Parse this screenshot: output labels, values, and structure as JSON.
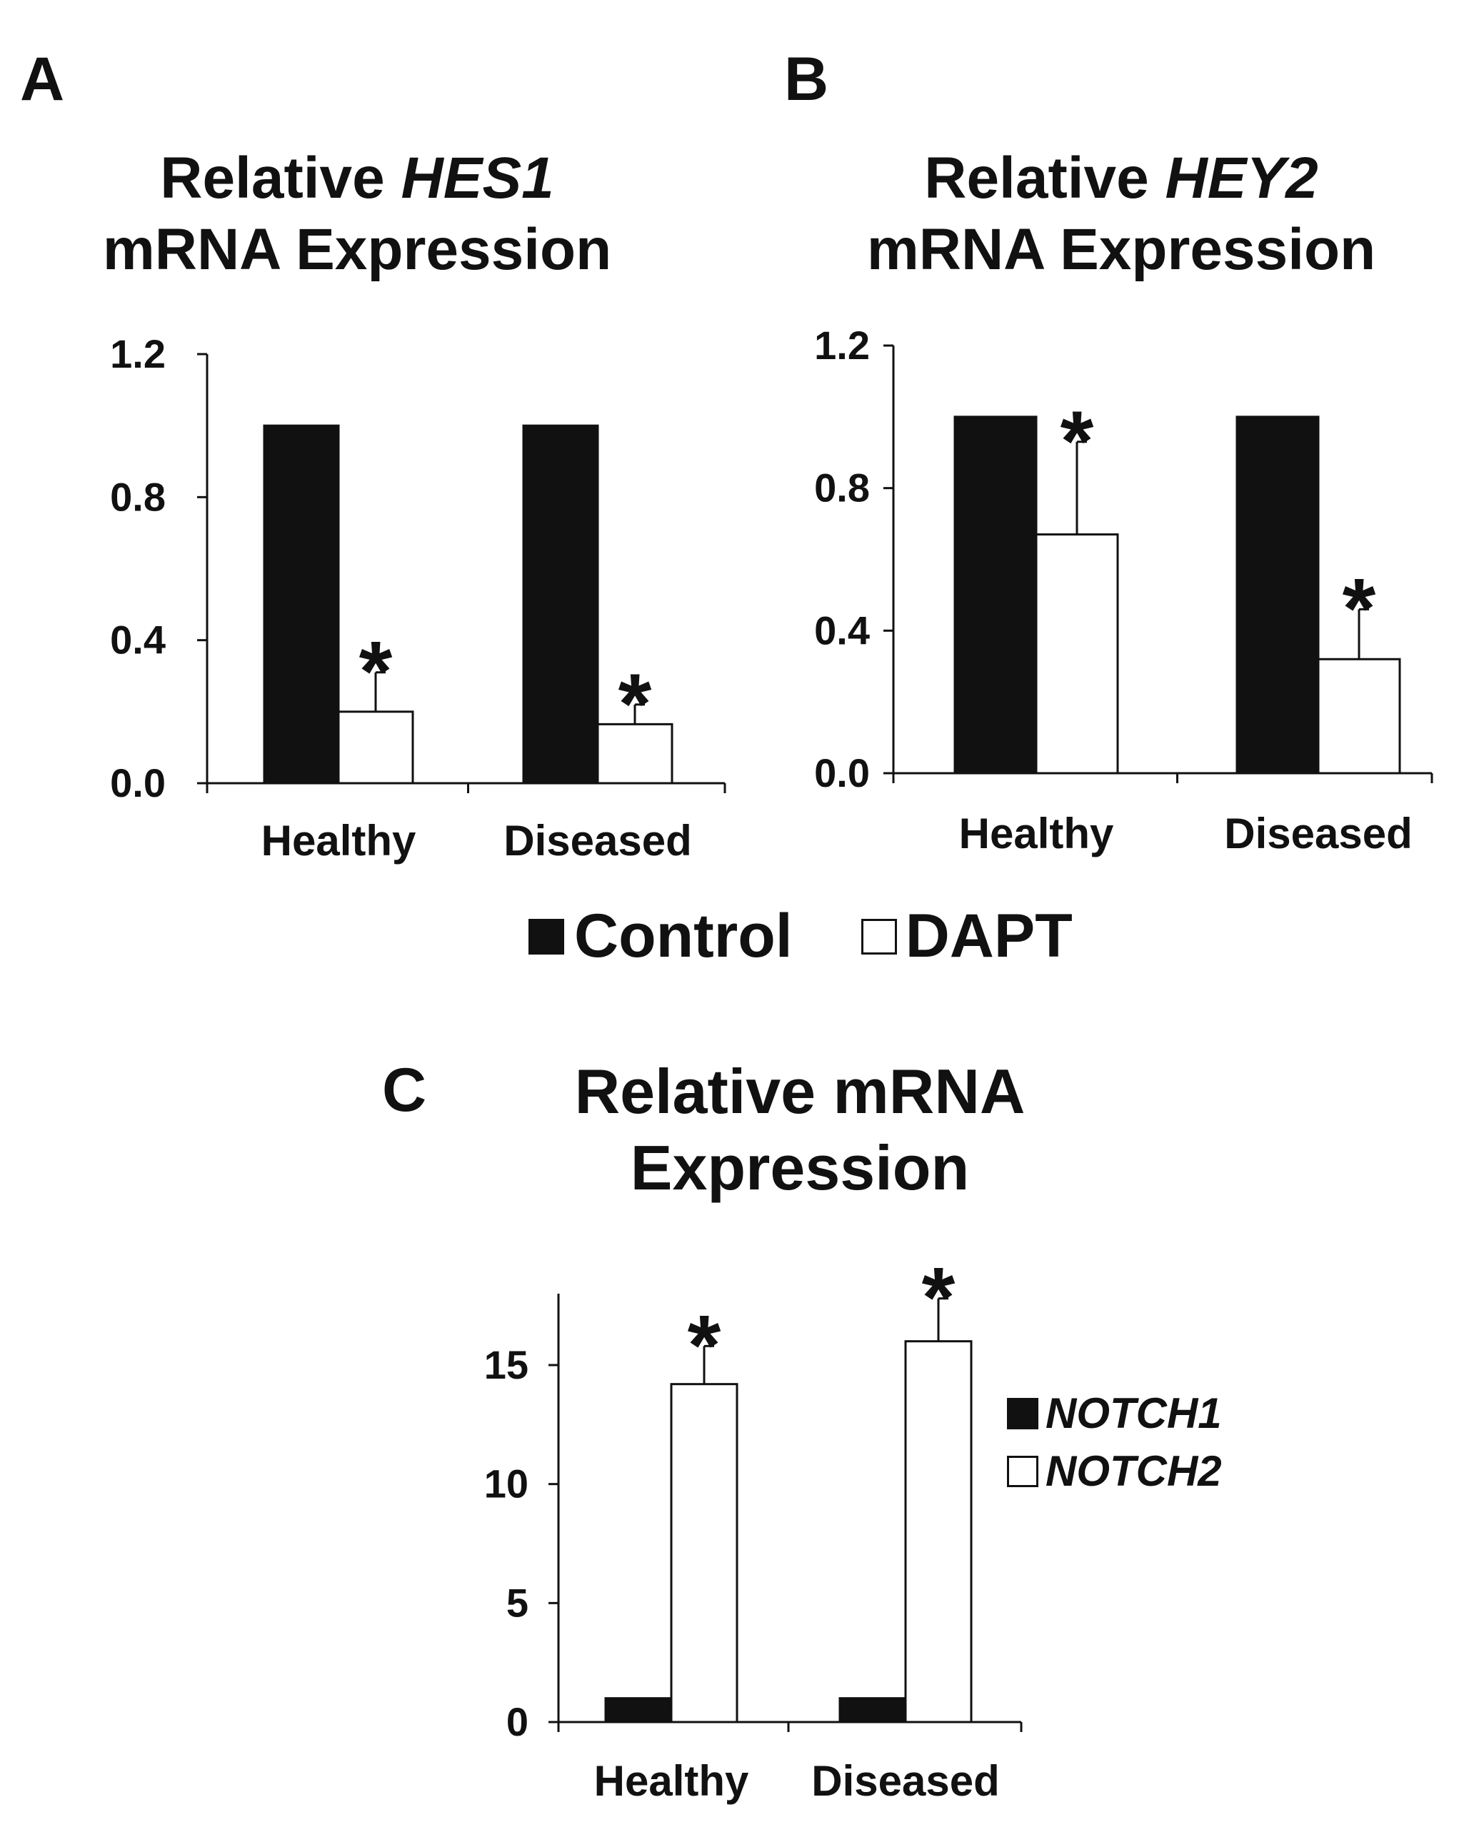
{
  "panels": {
    "a": {
      "letter": "A",
      "title_pre": "Relative ",
      "title_gene": "HES1",
      "title_post": "mRNA Expression"
    },
    "b": {
      "letter": "B",
      "title_pre": "Relative ",
      "title_gene": "HEY2",
      "title_post": "mRNA Expression"
    },
    "c": {
      "letter": "C",
      "title_line1": "Relative mRNA",
      "title_line2": "Expression"
    }
  },
  "legend_ab": {
    "control": "Control",
    "dapt": "DAPT"
  },
  "legend_c": {
    "notch1": "NOTCH1",
    "notch2": "NOTCH2"
  },
  "colors": {
    "filled": "#111111",
    "open": "#ffffff",
    "stroke": "#111111"
  },
  "chart_data": [
    {
      "panel": "A",
      "type": "bar",
      "title": "Relative HES1 mRNA Expression",
      "categories": [
        "Healthy",
        "Diseased"
      ],
      "series": [
        {
          "name": "Control",
          "values": [
            1.0,
            1.0
          ],
          "errors": [
            0,
            0
          ],
          "significant": [
            false,
            false
          ]
        },
        {
          "name": "DAPT",
          "values": [
            0.2,
            0.165
          ],
          "errors": [
            0.11,
            0.055
          ],
          "significant": [
            true,
            true
          ]
        }
      ],
      "ylim": [
        0,
        1.2
      ],
      "yticks": [
        "0.0",
        "0.4",
        "0.8",
        "1.2"
      ],
      "sig_marker": "*"
    },
    {
      "panel": "B",
      "type": "bar",
      "title": "Relative HEY2 mRNA Expression",
      "categories": [
        "Healthy",
        "Diseased"
      ],
      "series": [
        {
          "name": "Control",
          "values": [
            1.0,
            1.0
          ],
          "errors": [
            0,
            0
          ],
          "significant": [
            false,
            false
          ]
        },
        {
          "name": "DAPT",
          "values": [
            0.67,
            0.32
          ],
          "errors": [
            0.26,
            0.14
          ],
          "significant": [
            true,
            true
          ]
        }
      ],
      "ylim": [
        0,
        1.2
      ],
      "yticks": [
        "0.0",
        "0.4",
        "0.8",
        "1.2"
      ],
      "sig_marker": "*"
    },
    {
      "panel": "C",
      "type": "bar",
      "title": "Relative mRNA Expression",
      "categories": [
        "Healthy",
        "Diseased"
      ],
      "series": [
        {
          "name": "NOTCH1",
          "values": [
            1.0,
            1.0
          ],
          "errors": [
            0,
            0
          ],
          "significant": [
            false,
            false
          ]
        },
        {
          "name": "NOTCH2",
          "values": [
            14.2,
            16.0
          ],
          "errors": [
            1.6,
            1.8
          ],
          "significant": [
            true,
            true
          ]
        }
      ],
      "ylim": [
        0,
        18
      ],
      "yticks": [
        "0",
        "5",
        "10",
        "15"
      ],
      "sig_marker": "*"
    }
  ]
}
